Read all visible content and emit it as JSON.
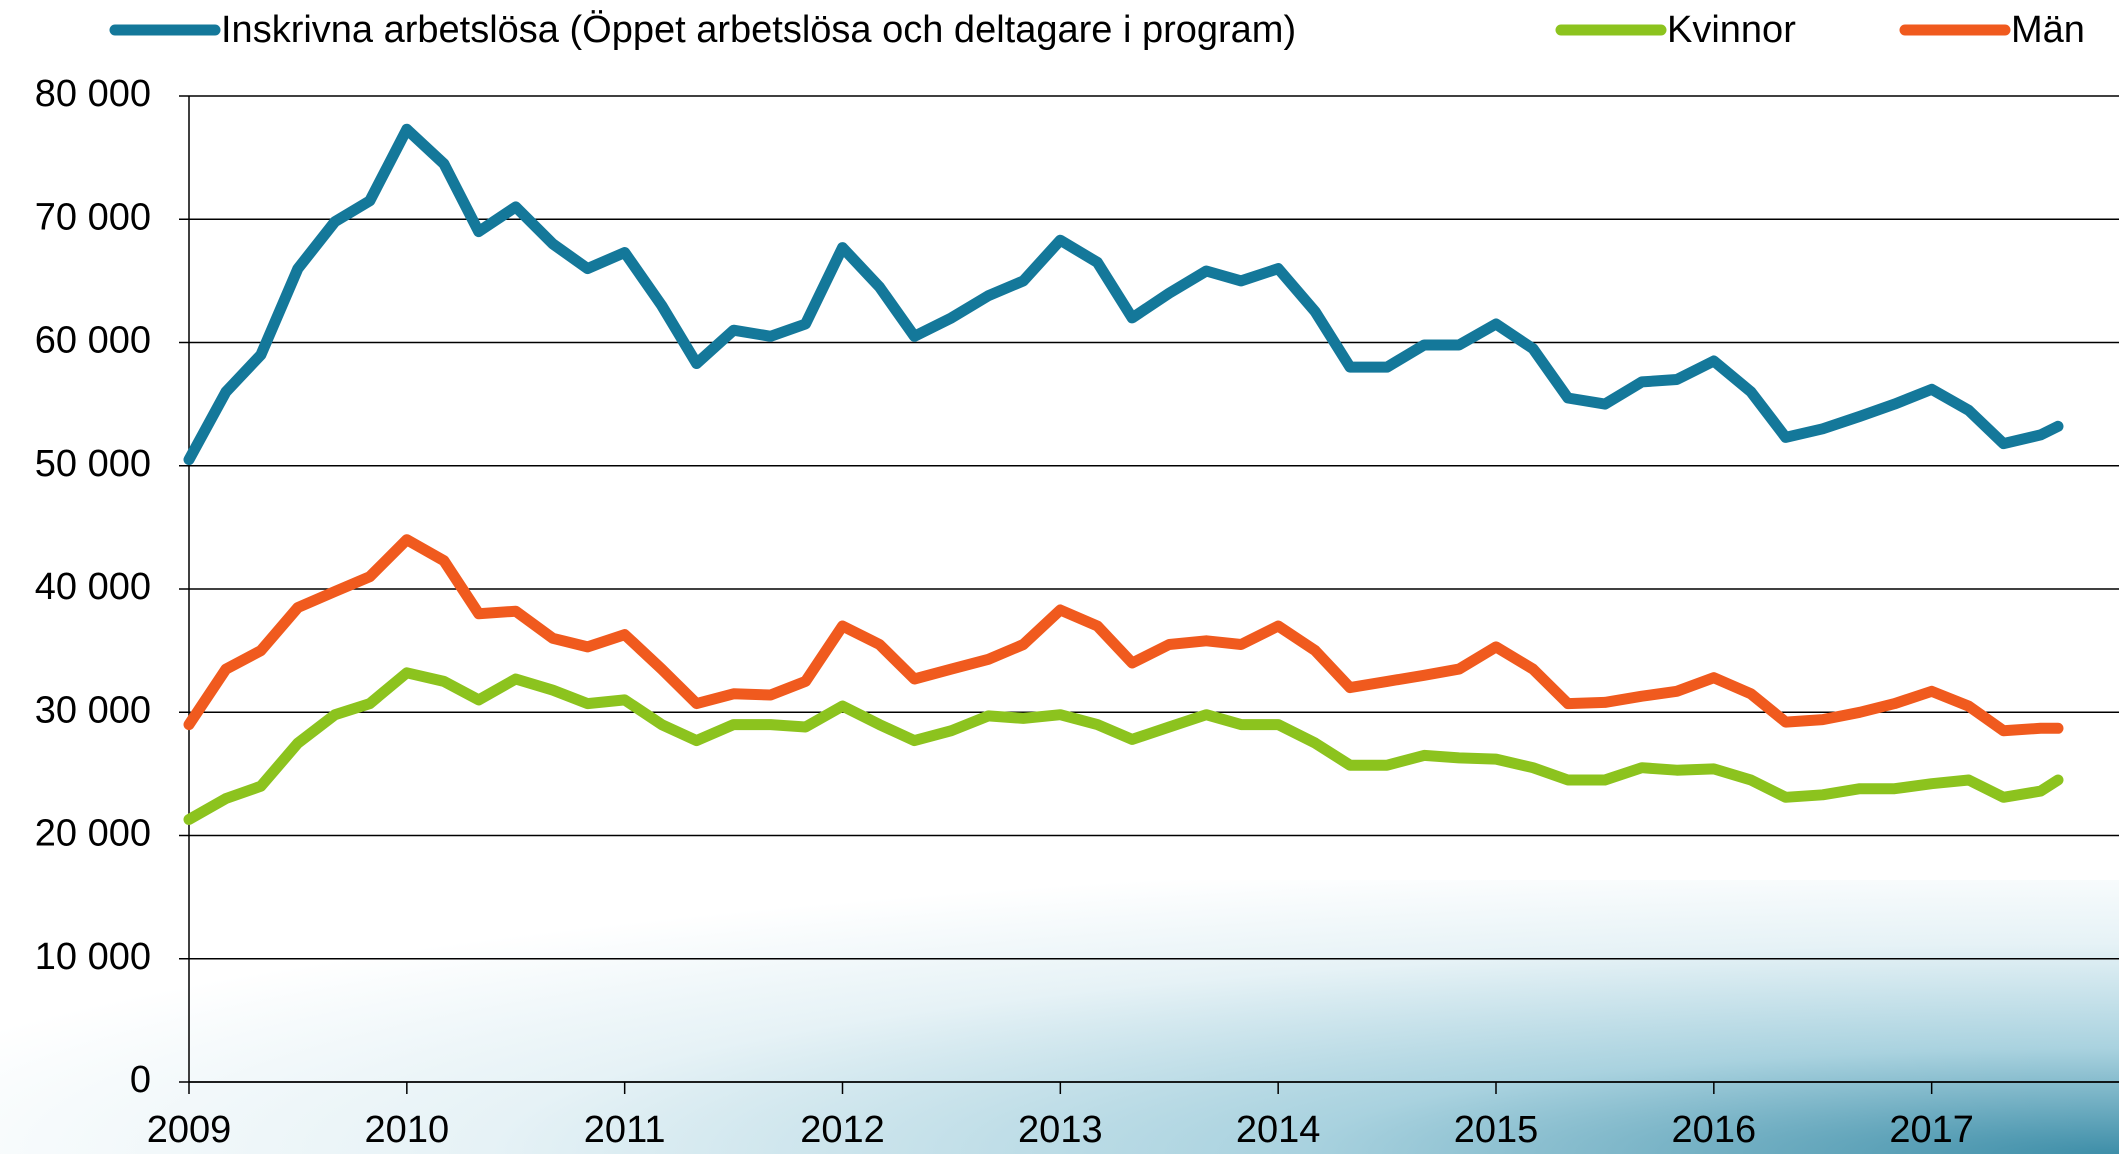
{
  "chart_data": {
    "type": "line",
    "x": [
      2009,
      2009.17,
      2009.33,
      2009.5,
      2009.67,
      2009.83,
      2010,
      2010.17,
      2010.33,
      2010.5,
      2010.67,
      2010.83,
      2011,
      2011.17,
      2011.33,
      2011.5,
      2011.67,
      2011.83,
      2012,
      2012.17,
      2012.33,
      2012.5,
      2012.67,
      2012.83,
      2013,
      2013.17,
      2013.33,
      2013.5,
      2013.67,
      2013.83,
      2014,
      2014.17,
      2014.33,
      2014.5,
      2014.67,
      2014.83,
      2015,
      2015.17,
      2015.33,
      2015.5,
      2015.67,
      2015.83,
      2016,
      2016.17,
      2016.33,
      2016.5,
      2016.67,
      2016.83,
      2017,
      2017.17,
      2017.33,
      2017.5,
      2017.58
    ],
    "series": [
      {
        "name": "Inskrivna arbetslösa (Öppet arbetslösa och deltagare i program)",
        "color": "#14789a",
        "values": [
          50500,
          56000,
          59000,
          66000,
          69800,
          71500,
          77300,
          74500,
          69000,
          71000,
          68000,
          66000,
          67300,
          63000,
          58300,
          61000,
          60500,
          61500,
          67700,
          64500,
          60500,
          62000,
          63800,
          65000,
          68300,
          66500,
          62000,
          64000,
          65800,
          65000,
          66000,
          62500,
          58000,
          58000,
          59800,
          59800,
          61500,
          59500,
          55500,
          55000,
          56800,
          57000,
          58500,
          56000,
          52300,
          53000,
          54000,
          55000,
          56200,
          54500,
          51800,
          52500,
          53200
        ]
      },
      {
        "name": "Kvinnor",
        "color": "#8cc31e",
        "values": [
          21300,
          23000,
          24000,
          27500,
          29800,
          30700,
          33200,
          32500,
          31000,
          32700,
          31800,
          30700,
          31000,
          29000,
          27700,
          29000,
          29000,
          28800,
          30500,
          29000,
          27700,
          28500,
          29700,
          29500,
          29800,
          29000,
          27800,
          28800,
          29800,
          29000,
          29000,
          27500,
          25700,
          25700,
          26500,
          26300,
          26200,
          25500,
          24500,
          24500,
          25500,
          25300,
          25400,
          24500,
          23100,
          23300,
          23800,
          23800,
          24200,
          24500,
          23100,
          23600,
          24500
        ]
      },
      {
        "name": "Män",
        "color": "#f05a1e",
        "values": [
          29000,
          33500,
          35000,
          38500,
          39800,
          41000,
          44000,
          42300,
          38000,
          38200,
          36000,
          35300,
          36300,
          33500,
          30700,
          31500,
          31400,
          32500,
          37000,
          35500,
          32700,
          33500,
          34300,
          35500,
          38300,
          37000,
          34000,
          35500,
          35800,
          35500,
          37000,
          35000,
          32000,
          32500,
          33000,
          33500,
          35300,
          33500,
          30700,
          30800,
          31300,
          31700,
          32800,
          31500,
          29200,
          29400,
          30000,
          30700,
          31700,
          30500,
          28500,
          28700,
          28700
        ]
      }
    ],
    "xlim": [
      2009,
      2017.86
    ],
    "xticks": [
      2009,
      2010,
      2011,
      2012,
      2013,
      2014,
      2015,
      2016,
      2017
    ],
    "ylim": [
      0,
      80000
    ],
    "yticks": [
      0,
      {
        "value": 10000,
        "label": "10 000"
      },
      {
        "value": 20000,
        "label": "20 000"
      },
      {
        "value": 30000,
        "label": "30 000"
      },
      {
        "value": 40000,
        "label": "40 000"
      },
      {
        "value": 50000,
        "label": "50 000"
      },
      {
        "value": 60000,
        "label": "60 000"
      },
      {
        "value": 70000,
        "label": "70 000"
      },
      {
        "value": 80000,
        "label": "80 000"
      }
    ],
    "grid": true,
    "legend": "top"
  }
}
